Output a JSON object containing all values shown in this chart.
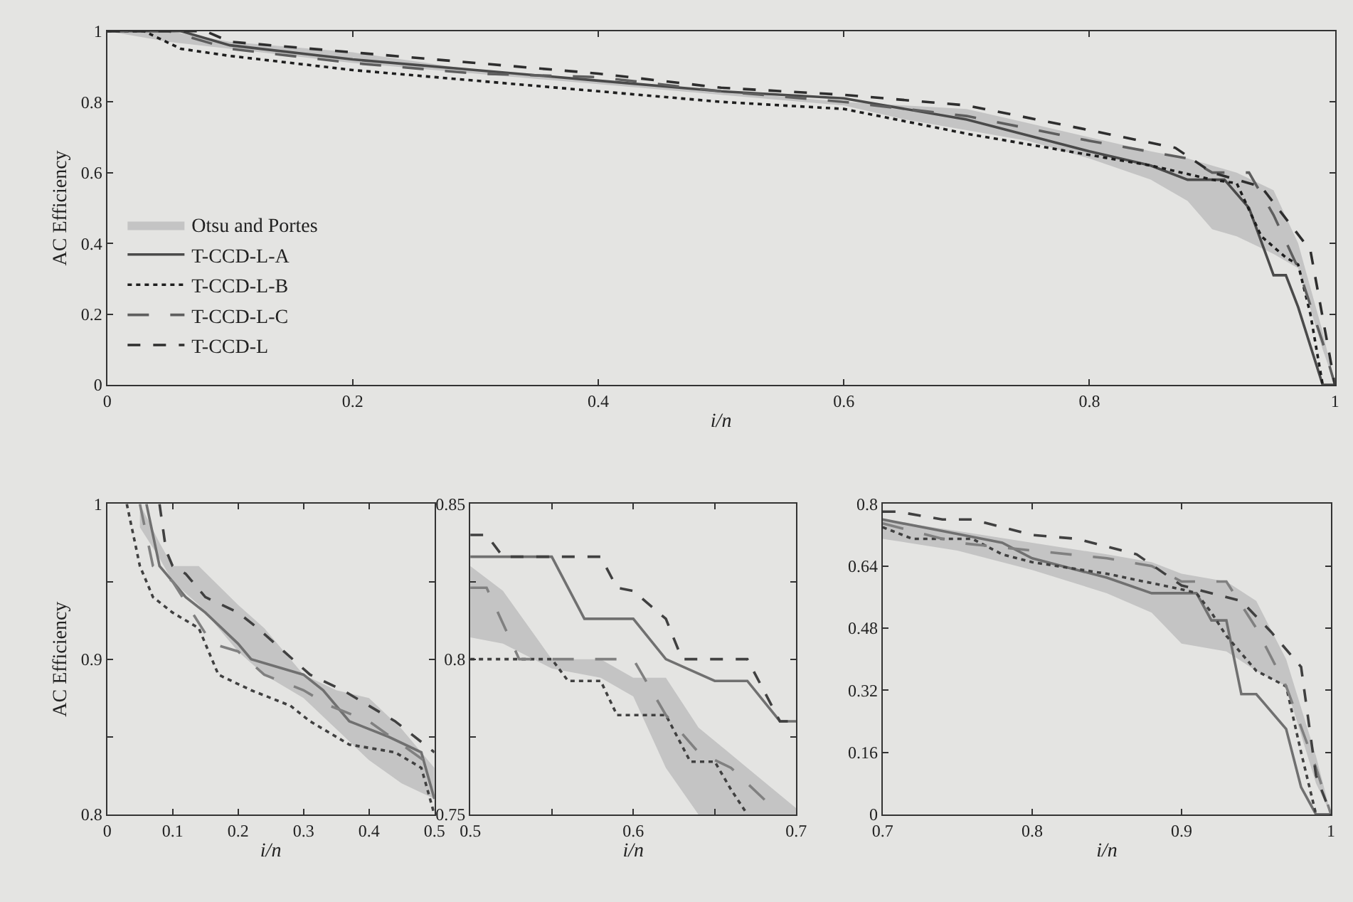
{
  "chart_data": [
    {
      "type": "line",
      "xlabel": "i/n",
      "ylabel": "AC Efficiency",
      "xlim": [
        0,
        1
      ],
      "ylim": [
        0,
        1
      ],
      "xticks": [
        0,
        0.2,
        0.4,
        0.6,
        0.8,
        1
      ],
      "yticks": [
        0,
        0.2,
        0.4,
        0.6,
        0.8,
        1
      ],
      "grid": false,
      "legend": "bottom left",
      "marker": "none",
      "series": [
        {
          "name": "Otsu and Portes",
          "color": "#c4c4c4",
          "x": [
            0,
            0.05,
            0.1,
            0.2,
            0.3,
            0.4,
            0.5,
            0.6,
            0.65,
            0.7,
            0.75,
            0.8,
            0.85,
            0.88,
            0.9,
            0.92,
            0.95,
            0.97,
            0.99,
            1
          ],
          "values": [
            null,
            null,
            null,
            null,
            null,
            null,
            null,
            null,
            null,
            null,
            null,
            null,
            null,
            null,
            null,
            null,
            null,
            null,
            null,
            null
          ],
          "lower": [
            1,
            0.97,
            0.95,
            0.91,
            0.88,
            0.85,
            0.82,
            0.79,
            0.75,
            0.72,
            0.69,
            0.64,
            0.58,
            0.52,
            0.44,
            0.42,
            0.37,
            0.33,
            0.1,
            0
          ],
          "upper": [
            1,
            1,
            0.97,
            0.94,
            0.89,
            0.86,
            0.83,
            0.8,
            0.79,
            0.78,
            0.74,
            0.7,
            0.66,
            0.64,
            0.62,
            0.6,
            0.55,
            0.4,
            0.15,
            0
          ]
        },
        {
          "name": "T-CCD-L-A",
          "color": "#4a4a4a",
          "line_style": "solid",
          "x": [
            0,
            0.06,
            0.1,
            0.2,
            0.3,
            0.4,
            0.5,
            0.6,
            0.7,
            0.8,
            0.85,
            0.88,
            0.91,
            0.93,
            0.95,
            0.96,
            0.97,
            0.99,
            1
          ],
          "values": [
            1,
            1,
            0.96,
            0.92,
            0.89,
            0.86,
            0.83,
            0.81,
            0.75,
            0.66,
            0.62,
            0.58,
            0.58,
            0.5,
            0.31,
            0.31,
            0.22,
            0,
            0
          ]
        },
        {
          "name": "T-CCD-L-B",
          "color": "#1e1e1e",
          "line_style": "dotted",
          "x": [
            0,
            0.03,
            0.06,
            0.1,
            0.2,
            0.3,
            0.4,
            0.5,
            0.6,
            0.7,
            0.8,
            0.85,
            0.9,
            0.92,
            0.94,
            0.96,
            0.97,
            0.98,
            0.99
          ],
          "values": [
            1,
            1,
            0.95,
            0.93,
            0.89,
            0.86,
            0.83,
            0.8,
            0.78,
            0.71,
            0.65,
            0.62,
            0.58,
            0.57,
            0.42,
            0.36,
            0.34,
            0.2,
            0
          ]
        },
        {
          "name": "T-CCD-L-C",
          "color": "#5e5e5e",
          "line_style": "dashed",
          "x": [
            0,
            0.05,
            0.1,
            0.2,
            0.3,
            0.4,
            0.5,
            0.6,
            0.7,
            0.8,
            0.88,
            0.9,
            0.93,
            0.95,
            0.97,
            0.99,
            1
          ],
          "values": [
            1,
            1,
            0.95,
            0.91,
            0.88,
            0.87,
            0.83,
            0.8,
            0.76,
            0.69,
            0.64,
            0.6,
            0.6,
            0.48,
            0.33,
            0.12,
            0
          ]
        },
        {
          "name": "T-CCD-L",
          "color": "#2e2e2e",
          "line_style": "dashdot",
          "x": [
            0,
            0.08,
            0.1,
            0.2,
            0.3,
            0.4,
            0.5,
            0.6,
            0.7,
            0.8,
            0.87,
            0.9,
            0.94,
            0.98,
            1
          ],
          "values": [
            1,
            1,
            0.97,
            0.94,
            0.91,
            0.88,
            0.84,
            0.82,
            0.79,
            0.72,
            0.67,
            0.6,
            0.56,
            0.38,
            0
          ]
        }
      ]
    },
    {
      "type": "line",
      "xlabel": "i/n",
      "ylabel": "AC Efficiency",
      "xlim": [
        0,
        0.5
      ],
      "ylim": [
        0.8,
        1
      ],
      "xticks": [
        0,
        0.1,
        0.2,
        0.3,
        0.4,
        0.5
      ],
      "yticks": [
        0.8,
        {
          "value": 0.85,
          "label": null
        },
        0.9,
        {
          "value": 0.95,
          "label": null
        },
        1
      ],
      "grid": false,
      "marker": "none",
      "series": [
        {
          "color": "#c4c4c4",
          "x": [
            0.05,
            0.08,
            0.1,
            0.14,
            0.2,
            0.24,
            0.3,
            0.35,
            0.4,
            0.45,
            0.5
          ],
          "values": [
            null,
            null,
            null,
            null,
            null,
            null,
            null,
            null,
            null,
            null,
            null
          ],
          "lower": [
            0.985,
            0.965,
            0.95,
            0.935,
            0.905,
            0.89,
            0.875,
            0.855,
            0.835,
            0.82,
            0.81
          ],
          "upper": [
            1,
            0.975,
            0.96,
            0.96,
            0.935,
            0.92,
            0.89,
            0.88,
            0.875,
            0.855,
            0.83
          ]
        },
        {
          "color": "#707070",
          "line_style": "solid",
          "x": [
            0.06,
            0.08,
            0.1,
            0.12,
            0.15,
            0.2,
            0.22,
            0.3,
            0.33,
            0.37,
            0.43,
            0.48,
            0.5
          ],
          "values": [
            1,
            0.96,
            0.95,
            0.94,
            0.93,
            0.91,
            0.9,
            0.89,
            0.88,
            0.86,
            0.85,
            0.84,
            0.81
          ]
        },
        {
          "color": "#404040",
          "line_style": "dotted",
          "x": [
            0.03,
            0.05,
            0.07,
            0.1,
            0.14,
            0.17,
            0.22,
            0.28,
            0.31,
            0.37,
            0.44,
            0.48,
            0.5
          ],
          "values": [
            1,
            0.96,
            0.94,
            0.93,
            0.92,
            0.89,
            0.88,
            0.87,
            0.86,
            0.845,
            0.84,
            0.83,
            0.8
          ]
        },
        {
          "color": "#808080",
          "line_style": "dashed",
          "x": [
            0.05,
            0.07,
            0.1,
            0.13,
            0.16,
            0.2,
            0.24,
            0.3,
            0.34,
            0.4,
            0.45,
            0.5
          ],
          "values": [
            1,
            0.96,
            0.95,
            0.93,
            0.91,
            0.905,
            0.89,
            0.88,
            0.87,
            0.86,
            0.845,
            0.83
          ]
        },
        {
          "color": "#404040",
          "line_style": "dashdot",
          "x": [
            0.08,
            0.09,
            0.1,
            0.12,
            0.15,
            0.2,
            0.23,
            0.27,
            0.31,
            0.36,
            0.4,
            0.44,
            0.5
          ],
          "values": [
            1,
            0.97,
            0.96,
            0.955,
            0.94,
            0.93,
            0.92,
            0.905,
            0.89,
            0.88,
            0.87,
            0.86,
            0.84
          ]
        }
      ]
    },
    {
      "type": "line",
      "xlabel": "i/n",
      "xlim": [
        0.5,
        0.7
      ],
      "ylim": [
        0.75,
        0.85
      ],
      "xticks": [
        0.5,
        {
          "value": 0.55,
          "label": null
        },
        0.6,
        {
          "value": 0.65,
          "label": null
        },
        0.7
      ],
      "yticks": [
        0.75,
        {
          "value": 0.775,
          "label": null
        },
        0.8,
        {
          "value": 0.825,
          "label": null
        },
        0.85
      ],
      "grid": false,
      "marker": "none",
      "series": [
        {
          "color": "#c4c4c4",
          "x": [
            0.5,
            0.52,
            0.55,
            0.58,
            0.6,
            0.62,
            0.64,
            0.67,
            0.7
          ],
          "values": [
            null,
            null,
            null,
            null,
            null,
            null,
            null,
            null,
            null
          ],
          "lower": [
            0.807,
            0.805,
            0.797,
            0.794,
            0.788,
            0.765,
            0.75,
            0.75,
            0.75
          ],
          "upper": [
            0.83,
            0.822,
            0.8,
            0.8,
            0.794,
            0.794,
            0.778,
            0.765,
            0.752
          ]
        },
        {
          "color": "#707070",
          "line_style": "solid",
          "x": [
            0.5,
            0.55,
            0.57,
            0.6,
            0.62,
            0.65,
            0.67,
            0.69,
            0.7
          ],
          "values": [
            0.833,
            0.833,
            0.813,
            0.813,
            0.8,
            0.793,
            0.793,
            0.78,
            0.78
          ]
        },
        {
          "color": "#404040",
          "line_style": "dotted",
          "x": [
            0.5,
            0.55,
            0.56,
            0.58,
            0.59,
            0.62,
            0.635,
            0.65,
            0.66,
            0.67
          ],
          "values": [
            0.8,
            0.8,
            0.793,
            0.793,
            0.782,
            0.782,
            0.767,
            0.767,
            0.758,
            0.75
          ]
        },
        {
          "color": "#808080",
          "line_style": "dashed",
          "x": [
            0.5,
            0.51,
            0.53,
            0.55,
            0.6,
            0.62,
            0.64,
            0.66,
            0.69
          ],
          "values": [
            0.823,
            0.823,
            0.8,
            0.8,
            0.8,
            0.782,
            0.77,
            0.765,
            0.75
          ]
        },
        {
          "color": "#404040",
          "line_style": "dashdot",
          "x": [
            0.5,
            0.51,
            0.52,
            0.58,
            0.59,
            0.6,
            0.62,
            0.63,
            0.67,
            0.69,
            0.7
          ],
          "values": [
            0.84,
            0.84,
            0.833,
            0.833,
            0.823,
            0.822,
            0.813,
            0.8,
            0.8,
            0.78,
            0.78
          ]
        }
      ]
    },
    {
      "type": "line",
      "xlabel": "i/n",
      "xlim": [
        0.7,
        1
      ],
      "ylim": [
        0,
        0.8
      ],
      "xticks": [
        0.7,
        0.8,
        0.9,
        1
      ],
      "yticks": [
        0,
        0.16,
        0.32,
        0.48,
        0.64,
        0.8
      ],
      "grid": false,
      "marker": "none",
      "series": [
        {
          "color": "#c4c4c4",
          "x": [
            0.7,
            0.75,
            0.8,
            0.85,
            0.88,
            0.9,
            0.93,
            0.95,
            0.97,
            0.99,
            1
          ],
          "values": [
            null,
            null,
            null,
            null,
            null,
            null,
            null,
            null,
            null,
            null,
            null
          ],
          "lower": [
            0.71,
            0.68,
            0.63,
            0.57,
            0.52,
            0.44,
            0.42,
            0.37,
            0.33,
            0.08,
            0
          ],
          "upper": [
            0.76,
            0.73,
            0.7,
            0.67,
            0.65,
            0.62,
            0.6,
            0.55,
            0.4,
            0.15,
            0
          ]
        },
        {
          "color": "#707070",
          "line_style": "solid",
          "x": [
            0.7,
            0.74,
            0.78,
            0.8,
            0.85,
            0.88,
            0.91,
            0.92,
            0.93,
            0.94,
            0.95,
            0.97,
            0.98,
            0.99,
            1
          ],
          "values": [
            0.76,
            0.73,
            0.7,
            0.66,
            0.61,
            0.57,
            0.57,
            0.5,
            0.5,
            0.31,
            0.31,
            0.22,
            0.07,
            0,
            0
          ]
        },
        {
          "color": "#404040",
          "line_style": "dotted",
          "x": [
            0.7,
            0.72,
            0.76,
            0.78,
            0.8,
            0.85,
            0.9,
            0.91,
            0.92,
            0.93,
            0.95,
            0.97,
            0.98,
            0.99
          ],
          "values": [
            0.74,
            0.71,
            0.71,
            0.67,
            0.65,
            0.62,
            0.58,
            0.57,
            0.52,
            0.46,
            0.37,
            0.33,
            0.16,
            0
          ]
        },
        {
          "color": "#808080",
          "line_style": "dashed",
          "x": [
            0.7,
            0.75,
            0.8,
            0.85,
            0.88,
            0.9,
            0.93,
            0.95,
            0.97,
            0.99,
            1
          ],
          "values": [
            0.75,
            0.7,
            0.68,
            0.66,
            0.64,
            0.6,
            0.6,
            0.48,
            0.33,
            0.12,
            0
          ]
        },
        {
          "color": "#404040",
          "line_style": "dashdot",
          "x": [
            0.7,
            0.71,
            0.74,
            0.76,
            0.8,
            0.83,
            0.87,
            0.9,
            0.94,
            0.96,
            0.98,
            0.99,
            1
          ],
          "values": [
            0.78,
            0.78,
            0.76,
            0.76,
            0.72,
            0.71,
            0.67,
            0.59,
            0.55,
            0.47,
            0.38,
            0.1,
            0
          ]
        }
      ]
    }
  ]
}
